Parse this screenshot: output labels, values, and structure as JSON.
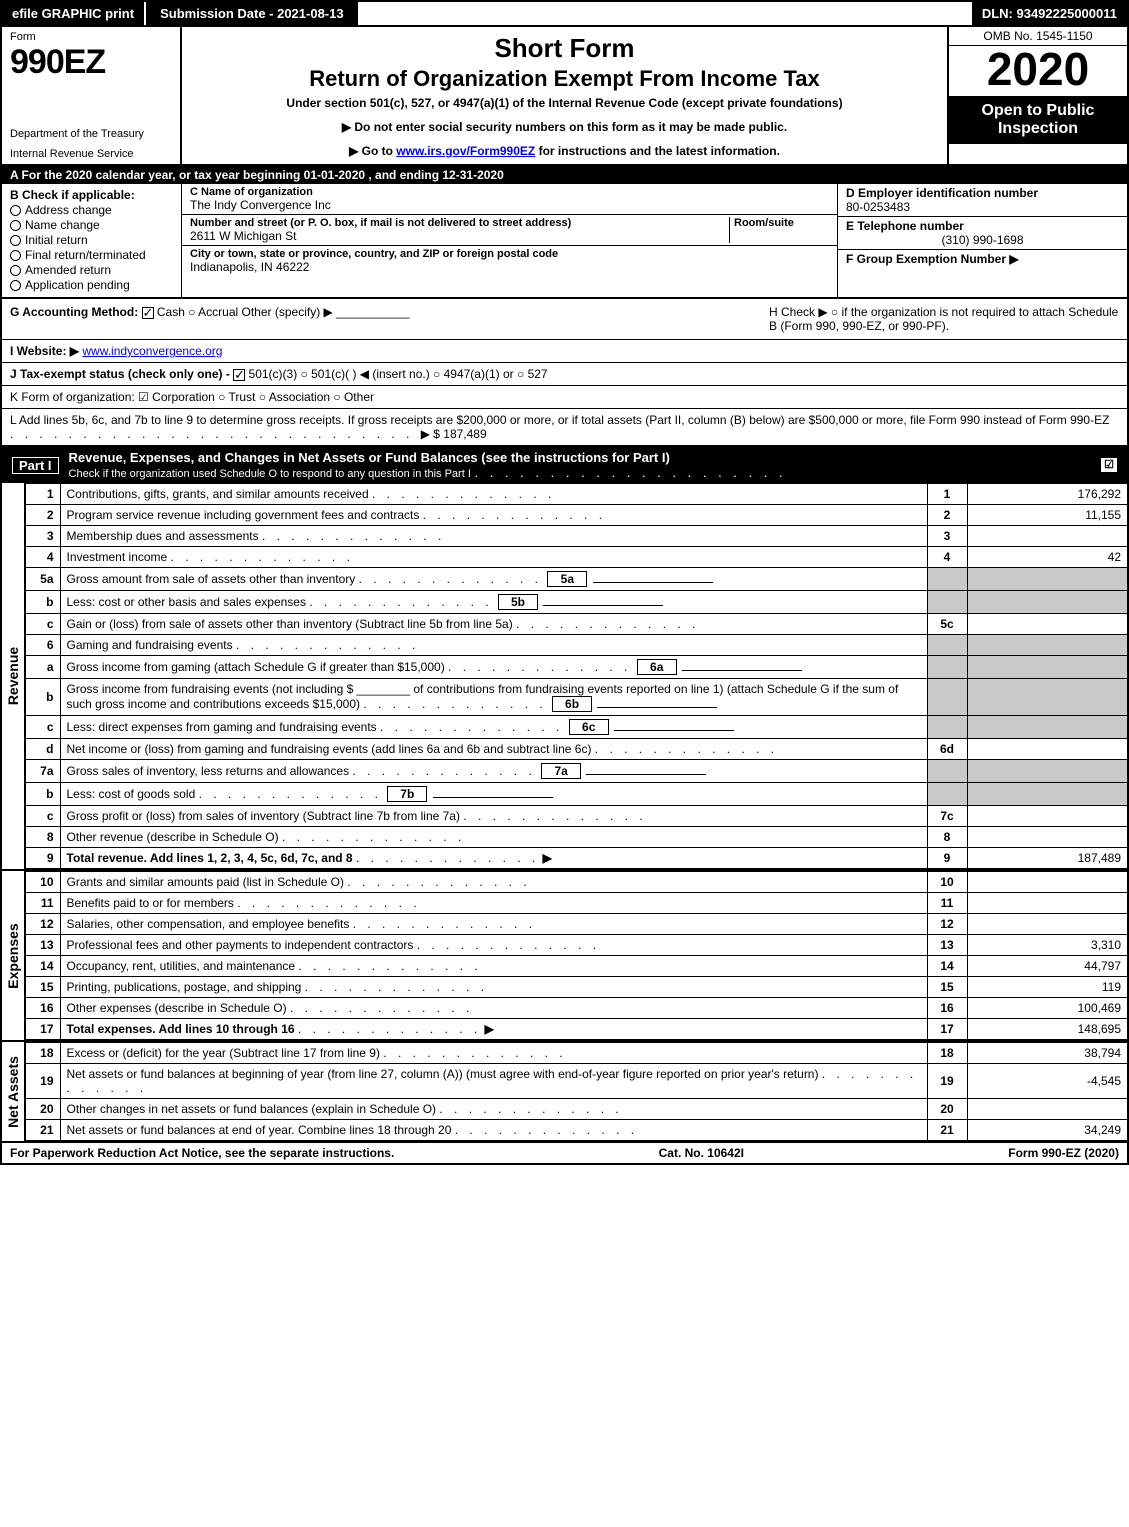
{
  "topbar": {
    "efile": "efile GRAPHIC print",
    "submission": "Submission Date - 2021-08-13",
    "dln": "DLN: 93492225000011"
  },
  "header": {
    "form_label": "Form",
    "form_num": "990EZ",
    "dept1": "Department of the Treasury",
    "dept2": "Internal Revenue Service",
    "short_form": "Short Form",
    "return_title": "Return of Organization Exempt From Income Tax",
    "under": "Under section 501(c), 527, or 4947(a)(1) of the Internal Revenue Code (except private foundations)",
    "note1": "▶ Do not enter social security numbers on this form as it may be made public.",
    "note2_pre": "▶ Go to ",
    "note2_link": "www.irs.gov/Form990EZ",
    "note2_post": " for instructions and the latest information.",
    "omb": "OMB No. 1545-1150",
    "year": "2020",
    "open": "Open to Public Inspection"
  },
  "lineA": "A  For the 2020 calendar year, or tax year beginning 01-01-2020 , and ending 12-31-2020",
  "blockB": {
    "hdr": "B  Check if applicable:",
    "opts": [
      "Address change",
      "Name change",
      "Initial return",
      "Final return/terminated",
      "Amended return",
      "Application pending"
    ]
  },
  "blockC": {
    "name_lbl": "C Name of organization",
    "name": "The Indy Convergence Inc",
    "street_lbl": "Number and street (or P. O. box, if mail is not delivered to street address)",
    "room_lbl": "Room/suite",
    "street": "2611 W Michigan St",
    "city_lbl": "City or town, state or province, country, and ZIP or foreign postal code",
    "city": "Indianapolis, IN  46222"
  },
  "blockDEF": {
    "d_lbl": "D Employer identification number",
    "d_val": "80-0253483",
    "e_lbl": "E Telephone number",
    "e_val": "(310) 990-1698",
    "f_lbl": "F Group Exemption Number  ▶"
  },
  "rowG": {
    "g_lbl": "G Accounting Method:",
    "g_opts": "Cash   ○ Accrual   Other (specify) ▶",
    "h_txt": "H  Check ▶  ○  if the organization is not required to attach Schedule B (Form 990, 990-EZ, or 990-PF)."
  },
  "rowI": {
    "i_lbl": "I Website: ▶",
    "i_val": "www.indyconvergence.org",
    "j_lbl": "J Tax-exempt status (check only one) - ",
    "j_rest": " 501(c)(3)  ○ 501(c)(  ) ◀ (insert no.)  ○ 4947(a)(1) or  ○ 527"
  },
  "rowK": "K Form of organization:   ☑ Corporation   ○ Trust   ○ Association   ○ Other",
  "rowL": {
    "text": "L Add lines 5b, 6c, and 7b to line 9 to determine gross receipts. If gross receipts are $200,000 or more, or if total assets (Part II, column (B) below) are $500,000 or more, file Form 990 instead of Form 990-EZ",
    "amt": "▶ $ 187,489"
  },
  "part1": {
    "tag": "Part I",
    "title": "Revenue, Expenses, and Changes in Net Assets or Fund Balances (see the instructions for Part I)",
    "sub": "Check if the organization used Schedule O to respond to any question in this Part I",
    "checked": "☑"
  },
  "revenue_rows": [
    {
      "ln": "1",
      "desc": "Contributions, gifts, grants, and similar amounts received",
      "box": "1",
      "amt": "176,292"
    },
    {
      "ln": "2",
      "desc": "Program service revenue including government fees and contracts",
      "box": "2",
      "amt": "11,155"
    },
    {
      "ln": "3",
      "desc": "Membership dues and assessments",
      "box": "3",
      "amt": ""
    },
    {
      "ln": "4",
      "desc": "Investment income",
      "box": "4",
      "amt": "42"
    },
    {
      "ln": "5a",
      "desc": "Gross amount from sale of assets other than inventory",
      "mini": "5a",
      "box": "",
      "amt": "",
      "gray": true
    },
    {
      "ln": "b",
      "desc": "Less: cost or other basis and sales expenses",
      "mini": "5b",
      "box": "",
      "amt": "",
      "gray": true
    },
    {
      "ln": "c",
      "desc": "Gain or (loss) from sale of assets other than inventory (Subtract line 5b from line 5a)",
      "box": "5c",
      "amt": ""
    },
    {
      "ln": "6",
      "desc": "Gaming and fundraising events",
      "box": "",
      "amt": "",
      "gray": true,
      "nobox": true
    },
    {
      "ln": "a",
      "desc": "Gross income from gaming (attach Schedule G if greater than $15,000)",
      "mini": "6a",
      "box": "",
      "amt": "",
      "gray": true
    },
    {
      "ln": "b",
      "desc": "Gross income from fundraising events (not including $ ________ of contributions from fundraising events reported on line 1) (attach Schedule G if the sum of such gross income and contributions exceeds $15,000)",
      "mini": "6b",
      "box": "",
      "amt": "",
      "gray": true
    },
    {
      "ln": "c",
      "desc": "Less: direct expenses from gaming and fundraising events",
      "mini": "6c",
      "box": "",
      "amt": "",
      "gray": true
    },
    {
      "ln": "d",
      "desc": "Net income or (loss) from gaming and fundraising events (add lines 6a and 6b and subtract line 6c)",
      "box": "6d",
      "amt": ""
    },
    {
      "ln": "7a",
      "desc": "Gross sales of inventory, less returns and allowances",
      "mini": "7a",
      "box": "",
      "amt": "",
      "gray": true
    },
    {
      "ln": "b",
      "desc": "Less: cost of goods sold",
      "mini": "7b",
      "box": "",
      "amt": "",
      "gray": true
    },
    {
      "ln": "c",
      "desc": "Gross profit or (loss) from sales of inventory (Subtract line 7b from line 7a)",
      "box": "7c",
      "amt": ""
    },
    {
      "ln": "8",
      "desc": "Other revenue (describe in Schedule O)",
      "box": "8",
      "amt": ""
    },
    {
      "ln": "9",
      "desc": "Total revenue. Add lines 1, 2, 3, 4, 5c, 6d, 7c, and 8",
      "box": "9",
      "amt": "187,489",
      "bold": true,
      "arrow": true
    }
  ],
  "expense_rows": [
    {
      "ln": "10",
      "desc": "Grants and similar amounts paid (list in Schedule O)",
      "box": "10",
      "amt": ""
    },
    {
      "ln": "11",
      "desc": "Benefits paid to or for members",
      "box": "11",
      "amt": ""
    },
    {
      "ln": "12",
      "desc": "Salaries, other compensation, and employee benefits",
      "box": "12",
      "amt": ""
    },
    {
      "ln": "13",
      "desc": "Professional fees and other payments to independent contractors",
      "box": "13",
      "amt": "3,310"
    },
    {
      "ln": "14",
      "desc": "Occupancy, rent, utilities, and maintenance",
      "box": "14",
      "amt": "44,797"
    },
    {
      "ln": "15",
      "desc": "Printing, publications, postage, and shipping",
      "box": "15",
      "amt": "119"
    },
    {
      "ln": "16",
      "desc": "Other expenses (describe in Schedule O)",
      "box": "16",
      "amt": "100,469"
    },
    {
      "ln": "17",
      "desc": "Total expenses. Add lines 10 through 16",
      "box": "17",
      "amt": "148,695",
      "bold": true,
      "arrow": true
    }
  ],
  "netassets_rows": [
    {
      "ln": "18",
      "desc": "Excess or (deficit) for the year (Subtract line 17 from line 9)",
      "box": "18",
      "amt": "38,794"
    },
    {
      "ln": "19",
      "desc": "Net assets or fund balances at beginning of year (from line 27, column (A)) (must agree with end-of-year figure reported on prior year's return)",
      "box": "19",
      "amt": "-4,545"
    },
    {
      "ln": "20",
      "desc": "Other changes in net assets or fund balances (explain in Schedule O)",
      "box": "20",
      "amt": ""
    },
    {
      "ln": "21",
      "desc": "Net assets or fund balances at end of year. Combine lines 18 through 20",
      "box": "21",
      "amt": "34,249"
    }
  ],
  "side_labels": {
    "rev": "Revenue",
    "exp": "Expenses",
    "na": "Net Assets"
  },
  "footer": {
    "left": "For Paperwork Reduction Act Notice, see the separate instructions.",
    "mid": "Cat. No. 10642I",
    "right": "Form 990-EZ (2020)"
  }
}
